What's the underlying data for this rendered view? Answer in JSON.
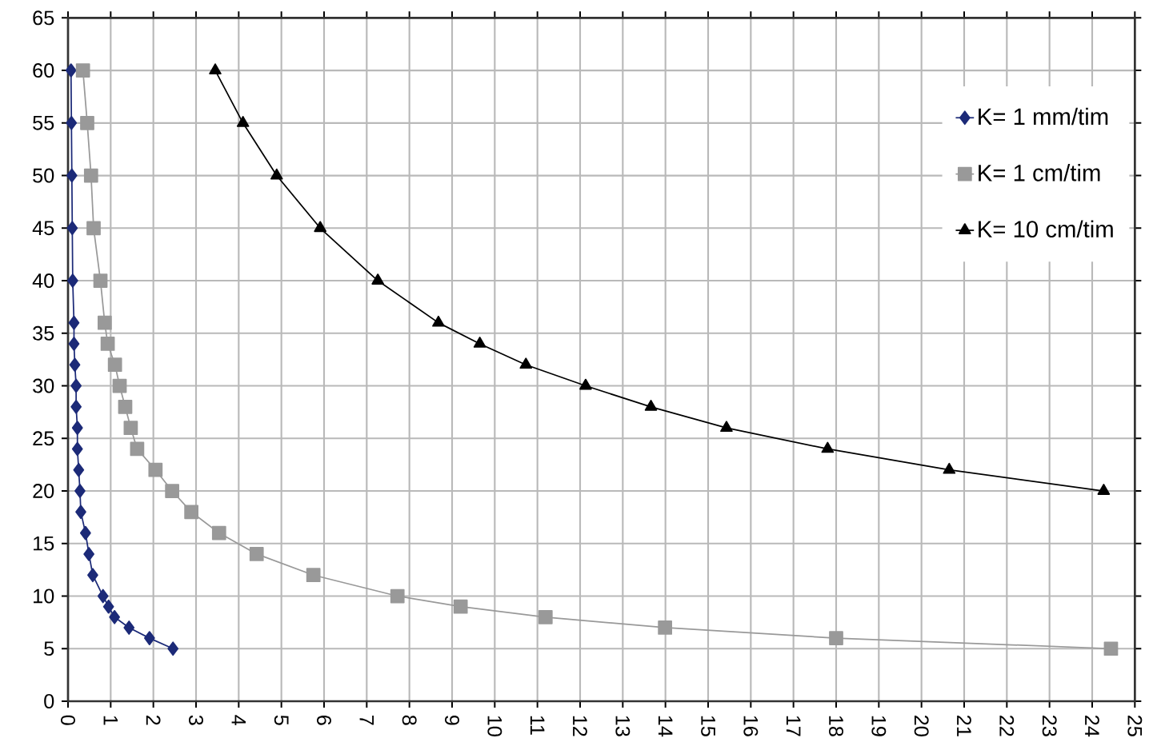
{
  "chart_data": {
    "type": "line",
    "xlim": [
      0,
      25
    ],
    "ylim": [
      0,
      65
    ],
    "xticks": [
      0,
      1,
      2,
      3,
      4,
      5,
      6,
      7,
      8,
      9,
      10,
      11,
      12,
      13,
      14,
      15,
      16,
      17,
      18,
      19,
      20,
      21,
      22,
      23,
      24,
      25
    ],
    "yticks": [
      0,
      5,
      10,
      15,
      20,
      25,
      30,
      35,
      40,
      45,
      50,
      55,
      60,
      65
    ],
    "grid": true,
    "legend": "top right",
    "line_style": "solid",
    "series": [
      {
        "name": "K= 1 mm/tim",
        "color": "#1c2a78",
        "marker": "diamond",
        "x": [
          0.07,
          0.08,
          0.09,
          0.1,
          0.11,
          0.14,
          0.14,
          0.16,
          0.19,
          0.19,
          0.22,
          0.22,
          0.25,
          0.28,
          0.3,
          0.41,
          0.49,
          0.58,
          0.82,
          0.95,
          1.09,
          1.43,
          1.91,
          2.46
        ],
        "values": [
          60,
          55,
          50,
          45,
          40,
          36,
          34,
          32,
          30,
          28,
          26,
          24,
          22,
          20,
          18,
          16,
          14,
          12,
          10,
          9,
          8,
          7,
          6,
          5
        ]
      },
      {
        "name": "K= 1 cm/tim",
        "color": "#999999",
        "marker": "square",
        "x": [
          0.35,
          0.45,
          0.54,
          0.6,
          0.76,
          0.86,
          0.93,
          1.1,
          1.21,
          1.34,
          1.47,
          1.62,
          2.05,
          2.44,
          2.89,
          3.54,
          4.42,
          5.75,
          7.72,
          9.2,
          11.19,
          13.99,
          18.0,
          24.44
        ],
        "values": [
          60,
          55,
          50,
          45,
          40,
          36,
          34,
          32,
          30,
          28,
          26,
          24,
          22,
          20,
          18,
          16,
          14,
          12,
          10,
          9,
          8,
          7,
          6,
          5
        ]
      },
      {
        "name": "K= 10 cm/tim",
        "color": "#000000",
        "marker": "triangle",
        "x": [
          3.45,
          4.1,
          4.89,
          5.91,
          7.26,
          8.68,
          9.65,
          10.73,
          12.13,
          13.66,
          15.43,
          17.8,
          20.65,
          24.27
        ],
        "values": [
          60,
          55,
          50,
          45,
          40,
          36,
          34,
          32,
          30,
          28,
          26,
          24,
          22,
          20
        ]
      }
    ]
  }
}
